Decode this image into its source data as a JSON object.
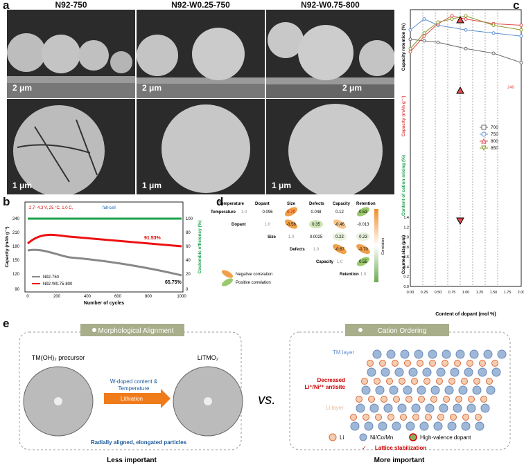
{
  "panels": {
    "a": "a",
    "b": "b",
    "c": "c",
    "d": "d",
    "e": "e"
  },
  "panel_a": {
    "columns": [
      "N92-750",
      "N92-W0.25-750",
      "N92-W0.75-800"
    ],
    "scale_top": "2 μm",
    "scale_bottom": "1 μm"
  },
  "panel_b": {
    "condition": "2.7- 4.3 V, 25 °C, 1.0 C,",
    "condition_tail": "full-cell",
    "retention_red": "91.53%",
    "retention_grey": "65.75%",
    "ylabel_left": "Capacity (mAh g⁻¹)",
    "ylabel_right": "Coulombic efficiency (%)",
    "xlabel": "Number of cycles",
    "legend": [
      "N92-750",
      "N92-W0.75-800"
    ]
  },
  "panel_d": {
    "headers": [
      "Temperature",
      "Dopant",
      "Size",
      "Defects",
      "Capacity",
      "Retention"
    ],
    "rows": [
      [
        "1.0",
        "0.096",
        "0.70",
        "0.048",
        "0.12",
        "0.53"
      ],
      [
        "",
        "1.0",
        "-0.56",
        "0.35",
        "-0.46",
        "-0.013"
      ],
      [
        "",
        "",
        "1.0",
        "0.0025",
        "0.22",
        "0.23"
      ],
      [
        "",
        "",
        "",
        "1.0",
        "-0.67",
        "-0.70"
      ],
      [
        "",
        "",
        "",
        "",
        "1.0",
        "0.55"
      ],
      [
        "",
        "",
        "",
        "",
        "",
        "1.0"
      ]
    ],
    "legend_neg": "Negative correlation",
    "legend_pos": "Positive correlation",
    "colorbar_label": "Correlation"
  },
  "panel_c": {
    "xlabel": "Content of dopant (mol %)",
    "ylabels": [
      "Capacity retention (%)",
      "Capacity (mAh g⁻¹)",
      "Content of cation mixing (%)",
      "Counted size (μm)"
    ],
    "legend": [
      "700",
      "750",
      "800",
      "850"
    ],
    "colors": {
      "700": "#6b6b6b",
      "750": "#5b8fd0",
      "800": "#e04a4a",
      "850": "#8a9a2a"
    }
  },
  "chart_data": {
    "type": "line",
    "x": [
      0.0,
      0.25,
      0.5,
      0.75,
      1.0,
      1.25,
      1.5,
      1.75,
      2.0
    ],
    "xticks": [
      "0.00",
      "0.25",
      "0.50",
      "0.75",
      "1.00",
      "1.25",
      "1.50",
      "1.75",
      "2.00"
    ],
    "xlabel": "Content of dopant (mol %)",
    "ylim_size": [
      0,
      1.4
    ],
    "ytick_size": [
      "0.0",
      "0.2",
      "0.4",
      "0.6",
      "0.8",
      "1.0",
      "1.2",
      "1.4"
    ],
    "ytick_capacity": [
      "240"
    ],
    "series": [
      {
        "name": "700",
        "retention": [
          0.76,
          0.75,
          0.74,
          null,
          0.7,
          null,
          0.67,
          null,
          0.61
        ]
      },
      {
        "name": "750",
        "retention": [
          0.82,
          0.89,
          0.85,
          null,
          0.82,
          null,
          0.8,
          null,
          0.78
        ]
      },
      {
        "name": "800",
        "retention": [
          0.68,
          0.78,
          0.86,
          0.91,
          0.89,
          null,
          0.86,
          null,
          0.85
        ]
      },
      {
        "name": "850",
        "retention": [
          0.7,
          0.8,
          0.87,
          0.89,
          0.91,
          null,
          0.85,
          null,
          0.82
        ]
      }
    ]
  },
  "panel_e": {
    "left_title": "Morphological Alignment",
    "right_title": "Cation Ordering",
    "precursor": "TM(OH)₂ precursor",
    "product": "LiTMO₂",
    "arrow_text1": "W-doped content &",
    "arrow_text2": "Temperature",
    "arrow_label": "Lithiation",
    "vs": "vs.",
    "left_caption": "Radially aligned, elongated particles",
    "left_footer": "Less important",
    "tm_layer": "TM layer",
    "li_layer": "Li layer",
    "decreased": "Decreased",
    "antisite": "Li⁺/Ni²⁺ antisite",
    "legend_li": "Li",
    "legend_ni": "Ni/Co/Mn",
    "legend_dopant": "High-valence dopant",
    "right_caption": "Lattice stabilization",
    "right_footer": "More  important",
    "checkmark": "✓"
  }
}
